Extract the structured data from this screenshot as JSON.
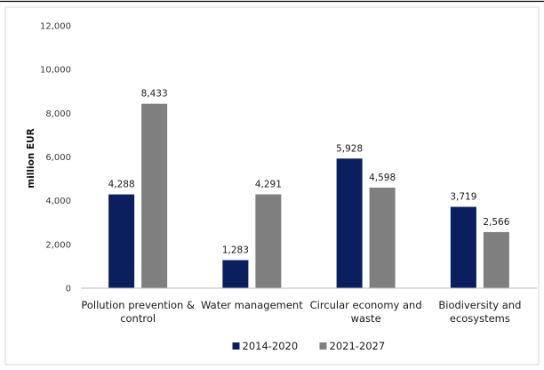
{
  "chart_data": {
    "type": "bar",
    "title": "",
    "xlabel": "",
    "ylabel": "million EUR",
    "ylim": [
      0,
      12000
    ],
    "yticks": [
      "0",
      "2,000",
      "4,000",
      "6,000",
      "8,000",
      "10,000",
      "12,000"
    ],
    "ytick_values": [
      0,
      2000,
      4000,
      6000,
      8000,
      10000,
      12000
    ],
    "categories": [
      [
        "Pollution prevention &",
        "control"
      ],
      [
        "Water management"
      ],
      [
        "Circular economy and",
        "waste"
      ],
      [
        "Biodiversity and",
        "ecosystems"
      ]
    ],
    "series": [
      {
        "name": "2014-2020",
        "color": "#0b1f5e",
        "values": [
          4288,
          1283,
          5928,
          3719
        ],
        "labels": [
          "4,288",
          "1,283",
          "5,928",
          "3,719"
        ]
      },
      {
        "name": "2021-2027",
        "color": "#7f7f7f",
        "values": [
          8433,
          4291,
          4598,
          2566
        ],
        "labels": [
          "8,433",
          "4,291",
          "4,598",
          "2,566"
        ]
      }
    ],
    "grid": false,
    "legend_position": "bottom"
  },
  "colors": {
    "border": "#d9d9d9",
    "axis": "#bfbfbf",
    "top_rule": "#000000"
  }
}
